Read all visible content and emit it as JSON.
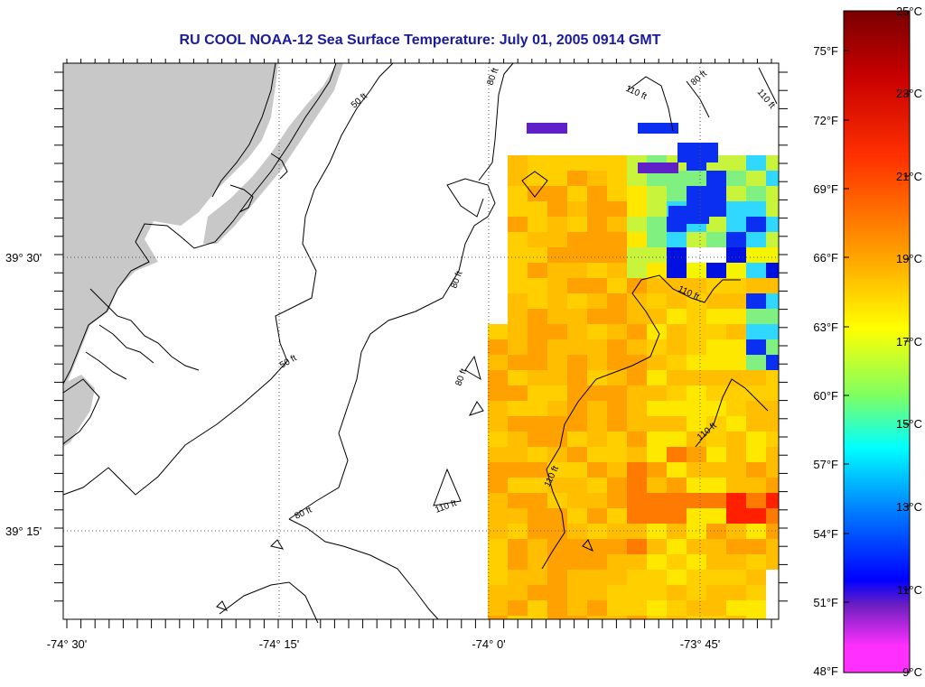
{
  "title": "RU COOL  NOAA-12  Sea Surface Temperature:  July 01, 2005 0914 GMT",
  "colors": {
    "title": "#1a1aa0",
    "land": "#c8c8c8",
    "frame": "#000000",
    "grid": "#555555"
  },
  "map": {
    "lat_labels": [
      "39° 30'",
      "39° 15'"
    ],
    "lon_labels": [
      "-74° 30'",
      "-74° 15'",
      "-74° 0'",
      "-73° 45'"
    ]
  },
  "depth_labels": {
    "d50": "50 ft",
    "d80": "80 ft",
    "d110": "110 ft"
  },
  "colorbar": {
    "fahrenheit_labels": [
      "75°F",
      "72°F",
      "69°F",
      "66°F",
      "63°F",
      "60°F",
      "57°F",
      "54°F",
      "51°F",
      "48°F"
    ],
    "celsius_labels": [
      "25°C",
      "23°C",
      "21°C",
      "19°C",
      "17°C",
      "15°C",
      "13°C",
      "11°C",
      "9°C"
    ],
    "colors_top_to_bottom": [
      "#8b0000",
      "#ff0000",
      "#ff8c00",
      "#ffd700",
      "#ffff00",
      "#80ff40",
      "#00ffff",
      "#1e90ff",
      "#0000ff",
      "#7b2cbf",
      "#ff33ff"
    ]
  },
  "sst_palette": {
    "orange": "#ffa100",
    "lt_orange": "#ffbf00",
    "yellow_orange": "#ffcf00",
    "yellow": "#ffe800",
    "lt_yellow": "#f5f500",
    "yellow_green": "#c8f53c",
    "green": "#80f080",
    "cyan": "#30d8ff",
    "blue": "#0a2ff0",
    "dark_blue": "#0010e0",
    "purple": "#6020c8",
    "red": "#ff2000",
    "dark_orange": "#ff7a00"
  }
}
